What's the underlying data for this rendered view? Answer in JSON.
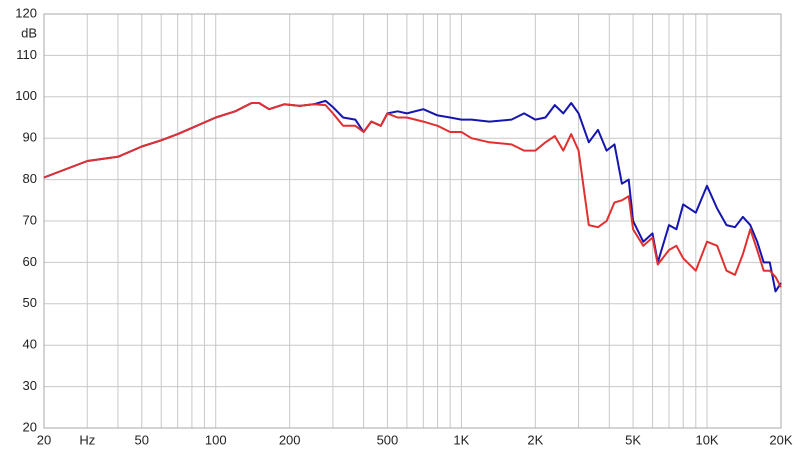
{
  "chart_data": {
    "type": "line",
    "y_label": "dB",
    "x_scale": "log",
    "grid": true,
    "xlim": [
      20,
      20000
    ],
    "ylim": [
      20,
      120
    ],
    "yticks": [
      20,
      30,
      40,
      50,
      60,
      70,
      80,
      90,
      100,
      110,
      120
    ],
    "xticks": [
      20,
      {
        "value": 30,
        "label": "Hz"
      },
      50,
      100,
      200,
      500,
      {
        "value": 1000,
        "label": "1K"
      },
      {
        "value": 2000,
        "label": "2K"
      },
      {
        "value": 5000,
        "label": "5K"
      },
      {
        "value": 10000,
        "label": "10K"
      },
      {
        "value": 20000,
        "label": "20K"
      }
    ],
    "xminorticks": [
      40,
      60,
      70,
      80,
      90,
      300,
      400,
      600,
      700,
      800,
      900,
      3000,
      4000,
      6000,
      7000,
      8000,
      9000
    ],
    "x": [
      20,
      30,
      40,
      50,
      60,
      70,
      80,
      100,
      120,
      140,
      150,
      165,
      190,
      220,
      250,
      280,
      300,
      330,
      370,
      400,
      430,
      470,
      500,
      550,
      600,
      700,
      800,
      900,
      1000,
      1100,
      1300,
      1600,
      1800,
      2000,
      2200,
      2400,
      2600,
      2800,
      3000,
      3300,
      3600,
      3900,
      4200,
      4500,
      4800,
      5000,
      5500,
      6000,
      6300,
      7000,
      7500,
      8000,
      9000,
      10000,
      11000,
      12000,
      13000,
      14000,
      15000,
      16000,
      17000,
      18000,
      19000,
      20000
    ],
    "series": [
      {
        "color": "#1515b0",
        "values": [
          80.5,
          84.5,
          85.5,
          88,
          89.5,
          91,
          92.5,
          95,
          96.5,
          98.5,
          98.5,
          97,
          98.2,
          97.8,
          98.2,
          99,
          97.5,
          95,
          94.5,
          91.5,
          94,
          93,
          96,
          96.5,
          96,
          97,
          95.5,
          95,
          94.5,
          94.5,
          94,
          94.5,
          96,
          94.5,
          95,
          98,
          96,
          98.5,
          96,
          89,
          92,
          87,
          88.5,
          79,
          80,
          70,
          65,
          67,
          60,
          69,
          68,
          74,
          72,
          78.5,
          73,
          69,
          68.5,
          71,
          69,
          65,
          60,
          60,
          53,
          55
        ]
      },
      {
        "color": "#e03030",
        "values": [
          80.5,
          84.5,
          85.5,
          88,
          89.5,
          91,
          92.5,
          95,
          96.5,
          98.5,
          98.5,
          97,
          98.2,
          97.8,
          98.2,
          98,
          96,
          93,
          93,
          91.5,
          94,
          93,
          96,
          95,
          95,
          94,
          93,
          91.5,
          91.5,
          90,
          89,
          88.5,
          87,
          87,
          89,
          90.5,
          87,
          91,
          87,
          69,
          68.5,
          70,
          74.5,
          75,
          76,
          68,
          64,
          66,
          59.5,
          63,
          64,
          61,
          58,
          65,
          64,
          58,
          57,
          62,
          68,
          63,
          58,
          58,
          56.5,
          54
        ]
      }
    ]
  }
}
